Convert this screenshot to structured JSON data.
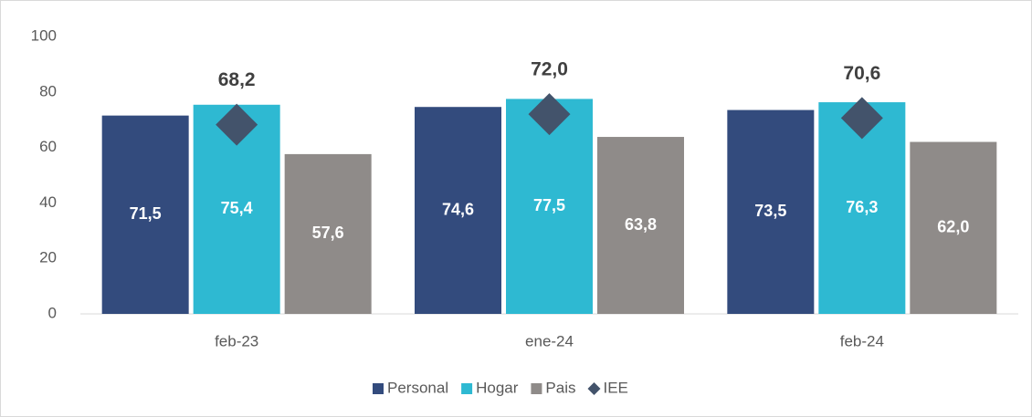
{
  "chart_data": {
    "type": "bar",
    "categories": [
      "feb-23",
      "ene-24",
      "feb-24"
    ],
    "series": [
      {
        "name": "Personal",
        "color": "#334b7d",
        "values": [
          71.5,
          74.6,
          73.5
        ],
        "value_labels": [
          "71,5",
          "74,6",
          "73,5"
        ]
      },
      {
        "name": "Hogar",
        "color": "#2eb9d2",
        "values": [
          75.4,
          77.5,
          76.3
        ],
        "value_labels": [
          "75,4",
          "77,5",
          "76,3"
        ]
      },
      {
        "name": "Pais",
        "color": "#8f8b89",
        "values": [
          57.6,
          63.8,
          62.0
        ],
        "value_labels": [
          "57,6",
          "63,8",
          "62,0"
        ]
      },
      {
        "name": "IEE",
        "type": "scatter",
        "marker": "diamond",
        "color": "#43536b",
        "values": [
          68.2,
          72.0,
          70.6
        ],
        "value_labels": [
          "68,2",
          "72,0",
          "70,6"
        ]
      }
    ],
    "ylim": [
      0,
      100
    ],
    "yticks": [
      0,
      20,
      40,
      60,
      80,
      100
    ],
    "grid": false,
    "legend": "bottom"
  }
}
